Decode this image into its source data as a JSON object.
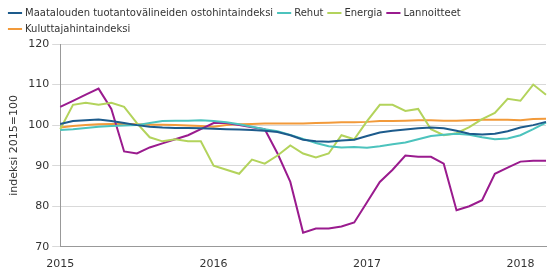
{
  "chart_data": {
    "type": "line",
    "y_label": "indeksi 2015=100",
    "categories": [
      "2015",
      null,
      null,
      null,
      null,
      null,
      null,
      null,
      null,
      null,
      null,
      null,
      "2016",
      null,
      null,
      null,
      null,
      null,
      null,
      null,
      null,
      null,
      null,
      null,
      "2017",
      null,
      null,
      null,
      null,
      null,
      null,
      null,
      null,
      null,
      null,
      null,
      "2018",
      null,
      null
    ],
    "series": [
      {
        "name": "Maatalouden tuotantovälineiden ostohintaindeksi",
        "color": "#1d5b8c",
        "values": [
          100.3,
          101,
          101.2,
          101.4,
          101,
          100.5,
          100,
          99.6,
          99.4,
          99.3,
          99.3,
          99.2,
          99.1,
          99.0,
          98.9,
          98.8,
          98.6,
          98.3,
          97.5,
          96.4,
          96.0,
          95.9,
          96.2,
          96.4,
          97.3,
          98.2,
          98.6,
          98.9,
          99.2,
          99.4,
          99.2,
          98.6,
          97.9,
          97.7,
          97.9,
          98.5,
          99.4,
          100.0,
          100.8
        ]
      },
      {
        "name": "Rehut",
        "color": "#4cc3bd",
        "values": [
          98.8,
          99.0,
          99.3,
          99.6,
          99.8,
          99.9,
          100.0,
          100.5,
          101.0,
          101.1,
          101.1,
          101.2,
          101.0,
          100.7,
          100.2,
          99.6,
          99.0,
          98.5,
          97.6,
          96.6,
          95.6,
          94.8,
          94.5,
          94.6,
          94.4,
          94.8,
          95.3,
          95.7,
          96.5,
          97.3,
          97.6,
          97.9,
          97.6,
          97.0,
          96.5,
          96.7,
          97.5,
          99.0,
          100.6
        ]
      },
      {
        "name": "Energia",
        "color": "#b3d35c",
        "values": [
          99,
          105,
          105.5,
          105,
          105.5,
          104.5,
          100.5,
          97,
          96,
          96.5,
          96,
          96,
          90,
          89,
          88,
          91.5,
          90.5,
          92.5,
          95,
          93,
          92,
          93,
          97.5,
          96.5,
          101,
          105,
          105,
          103.5,
          104,
          99,
          97.5,
          98,
          99.5,
          101.5,
          103,
          106.5,
          106,
          110,
          107.5
        ]
      },
      {
        "name": "Lannoitteet",
        "color": "#9a1b8e",
        "values": [
          104.5,
          106,
          107.5,
          109,
          104,
          93.5,
          93,
          94.5,
          95.5,
          96.5,
          97.5,
          99,
          100.5,
          100.5,
          100,
          99.5,
          99,
          93,
          86,
          73.5,
          74.5,
          74.5,
          75,
          76,
          81,
          86,
          89,
          92.5,
          92.2,
          92.2,
          90.5,
          79,
          80,
          81.5,
          88,
          89.5,
          91,
          91.2,
          91.2
        ]
      },
      {
        "name": "Kuluttajahintaindeksi",
        "color": "#f29a3a",
        "values": [
          99.4,
          99.8,
          100.0,
          100.2,
          100.3,
          100.3,
          100.2,
          100.1,
          100.1,
          100.0,
          99.9,
          99.8,
          99.6,
          100.0,
          100.2,
          100.3,
          100.4,
          100.4,
          100.4,
          100.4,
          100.5,
          100.6,
          100.7,
          100.7,
          100.8,
          101.0,
          101.0,
          101.1,
          101.2,
          101.2,
          101.1,
          101.1,
          101.2,
          101.3,
          101.3,
          101.3,
          101.2,
          101.5,
          101.6
        ]
      }
    ],
    "ylim": [
      70,
      120
    ],
    "yticks": [
      70,
      80,
      90,
      100,
      110,
      120
    ],
    "grid": true,
    "legend": "upper left"
  }
}
